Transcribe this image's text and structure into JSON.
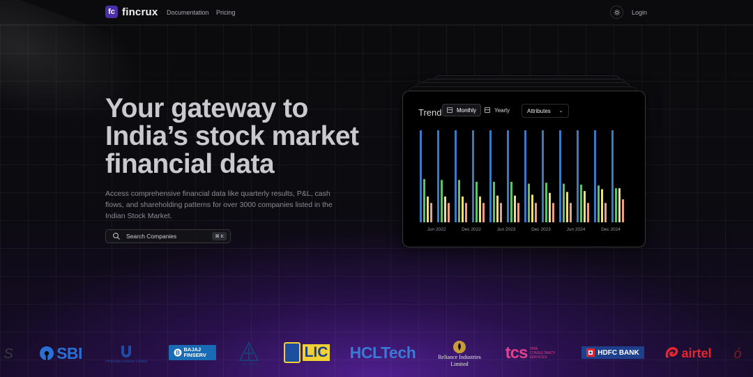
{
  "nav": {
    "brand": "fincrux",
    "brand_mark": "fc",
    "links": [
      "Documentation",
      "Pricing"
    ],
    "login": "Login"
  },
  "hero": {
    "title_lines": [
      "Your gateway to",
      "India’s stock market",
      "financial data"
    ],
    "description": "Access comprehensive financial data like quarterly results, P&L, cash flows, and shareholding patterns for over 3000 companies listed in the Indian Stock Market.",
    "search_placeholder": "Search Companies",
    "shortcut": "⌘ K"
  },
  "card": {
    "title": "Trend",
    "tabs": [
      {
        "label": "Monthly",
        "active": true
      },
      {
        "label": "Yearly",
        "active": false
      }
    ],
    "dropdown": "Attributes"
  },
  "chart_data": {
    "type": "bar",
    "title": "Trend",
    "x_tick_labels": [
      "Jun 2022",
      "Dec 2022",
      "Jun 2023",
      "Dec 2023",
      "Jun 2024",
      "Dec 2024"
    ],
    "ylim": [
      0,
      100
    ],
    "series": [
      {
        "color": "#3b79c2",
        "values": [
          100,
          100,
          100,
          100,
          100,
          100,
          100,
          100,
          100,
          100,
          100,
          100
        ]
      },
      {
        "color": "#5bc46a",
        "values": [
          47,
          46,
          46,
          44,
          44,
          44,
          42,
          43,
          42,
          41,
          40,
          37
        ]
      },
      {
        "color": "#ece07a",
        "values": [
          28,
          28,
          28,
          28,
          29,
          29,
          30,
          32,
          33,
          34,
          36,
          37
        ]
      },
      {
        "color": "#f0a080",
        "values": [
          21,
          21,
          21,
          21,
          21,
          21,
          21,
          21,
          21,
          21,
          21,
          25
        ]
      }
    ],
    "legend": "none",
    "grid": false
  },
  "logos": [
    {
      "name": "sbi",
      "text": "SBI",
      "color": "#2a6fd6"
    },
    {
      "name": "hindustan-unilever",
      "text": "Hindustan Unilever Limited",
      "color": "#1f4aa8"
    },
    {
      "name": "bajaj-finserv",
      "text": "BAJAJ FINSERV",
      "color": "#1a6bb5"
    },
    {
      "name": "itc",
      "text": "ITC Limited",
      "color": "#1c3c7a"
    },
    {
      "name": "lic",
      "text": "LIC",
      "color": "#f2d233"
    },
    {
      "name": "hcltech",
      "text": "HCLTech",
      "color": "#3a7ad6"
    },
    {
      "name": "reliance",
      "text": "Reliance Industries Limited",
      "color": "#e8e8e8"
    },
    {
      "name": "tcs",
      "text": "TATA CONSULTANCY SERVICES",
      "color": "#e0408a"
    },
    {
      "name": "hdfc-bank",
      "text": "HDFC BANK",
      "color": "#1d3f8c"
    },
    {
      "name": "airtel",
      "text": "airtel",
      "color": "#e3262f"
    }
  ]
}
